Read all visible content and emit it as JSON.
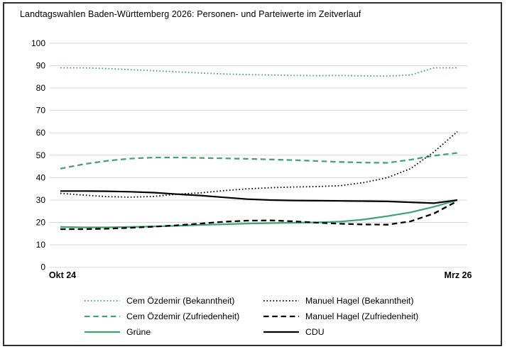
{
  "chart_data": {
    "type": "line",
    "title": "Landtagswahlen Baden-Württemberg 2026: Personen- und Parteiwerte im Zeitverlauf",
    "x_axis": {
      "start_label": "Okt 24",
      "end_label": "Mrz 26",
      "points": 18
    },
    "y_axis": {
      "min": 0,
      "max": 100,
      "tick_step": 10,
      "ticks": [
        0,
        10,
        20,
        30,
        40,
        50,
        60,
        70,
        80,
        90,
        100
      ]
    },
    "grid": true,
    "legend_position": "bottom",
    "legend_columns": [
      [
        0,
        1,
        2
      ],
      [
        3,
        4,
        5
      ]
    ],
    "series": [
      {
        "name": "Cem Özdemir (Bekanntheit)",
        "color": "#45a273",
        "line_style": "dotted",
        "values": [
          89,
          89,
          88.7,
          88.2,
          87.7,
          87.2,
          86.7,
          86.3,
          86,
          85.8,
          85.6,
          85.5,
          85.6,
          85.4,
          85.3,
          85.8,
          89,
          89
        ]
      },
      {
        "name": "Cem Özdemir (Zufriedenheit)",
        "color": "#45a273",
        "line_style": "dashed",
        "values": [
          44,
          46,
          47.5,
          48.5,
          49,
          49,
          48.8,
          48.6,
          48.4,
          48.1,
          47.8,
          47.4,
          47,
          46.7,
          46.6,
          48,
          49.8,
          51
        ]
      },
      {
        "name": "Grüne",
        "color": "#3da46e",
        "line_style": "solid",
        "values": [
          18,
          17.8,
          17.8,
          18,
          18.2,
          18.5,
          18.9,
          19.2,
          19.5,
          19.7,
          19.9,
          20,
          20.4,
          21.3,
          22.8,
          24.5,
          27,
          30
        ]
      },
      {
        "name": "Manuel Hagel (Bekanntheit)",
        "color": "#000000",
        "line_style": "dotted",
        "values": [
          33,
          32.2,
          31.5,
          31.3,
          31.6,
          32.6,
          33.2,
          34.2,
          35,
          35.5,
          35.8,
          36,
          36.4,
          37.8,
          40,
          44,
          51.5,
          60.5
        ]
      },
      {
        "name": "Manuel Hagel (Zufriedenheit)",
        "color": "#000000",
        "line_style": "dashed",
        "values": [
          17,
          17,
          17.2,
          17.6,
          18.1,
          18.7,
          19.5,
          20.3,
          20.8,
          20.9,
          20.5,
          19.9,
          19.4,
          19.1,
          19,
          20.5,
          24,
          29.5
        ]
      },
      {
        "name": "CDU",
        "color": "#000000",
        "line_style": "solid",
        "values": [
          34,
          34,
          33.9,
          33.7,
          33.3,
          32.6,
          32,
          31.2,
          30.4,
          30,
          29.8,
          29.7,
          29.6,
          29.5,
          29.4,
          29,
          28.6,
          30
        ]
      }
    ],
    "colors": {
      "gridline": "#d8d8d8",
      "border": "#2f2f2f",
      "text": "#000000"
    }
  }
}
